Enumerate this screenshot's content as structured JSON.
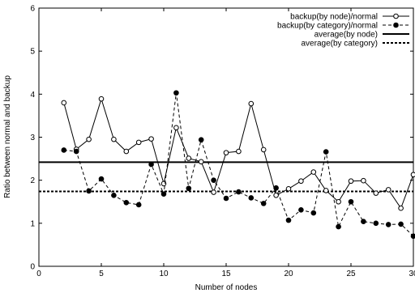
{
  "chart_data": {
    "type": "line",
    "title": "",
    "xlabel": "Number of nodes",
    "ylabel": "Ratio between normal and backup",
    "xlim": [
      0,
      30
    ],
    "ylim": [
      0,
      6
    ],
    "x_ticks": [
      0,
      5,
      10,
      15,
      20,
      25,
      30
    ],
    "y_ticks": [
      0,
      1,
      2,
      3,
      4,
      5,
      6
    ],
    "grid": false,
    "legend_position": "top-right",
    "x": [
      2,
      3,
      4,
      5,
      6,
      7,
      8,
      9,
      10,
      11,
      12,
      13,
      14,
      15,
      16,
      17,
      18,
      19,
      20,
      21,
      22,
      23,
      24,
      25,
      26,
      27,
      28,
      29,
      30
    ],
    "series": [
      {
        "name": "backup(by node)/normal",
        "style": "solid",
        "marker": "open-circle",
        "values": [
          3.8,
          2.72,
          2.95,
          3.89,
          2.95,
          2.67,
          2.88,
          2.96,
          1.92,
          3.22,
          2.51,
          2.43,
          1.72,
          2.64,
          2.67,
          3.78,
          2.71,
          1.65,
          1.8,
          1.98,
          2.19,
          1.76,
          1.5,
          1.98,
          1.99,
          1.7,
          1.78,
          1.35,
          2.13
        ]
      },
      {
        "name": "backup(by category)/normal",
        "style": "dashed",
        "marker": "filled-circle",
        "values": [
          2.7,
          2.67,
          1.75,
          2.03,
          1.65,
          1.48,
          1.43,
          2.37,
          1.68,
          4.03,
          1.81,
          2.94,
          2.0,
          1.58,
          1.73,
          1.59,
          1.46,
          1.82,
          1.07,
          1.31,
          1.24,
          2.66,
          0.92,
          1.5,
          1.04,
          1.0,
          0.97,
          0.98,
          0.7
        ]
      }
    ],
    "reference_lines": [
      {
        "name": "average(by node)",
        "style": "solid",
        "y": 2.42
      },
      {
        "name": "average(by category)",
        "style": "dashed",
        "y": 1.74
      }
    ]
  }
}
